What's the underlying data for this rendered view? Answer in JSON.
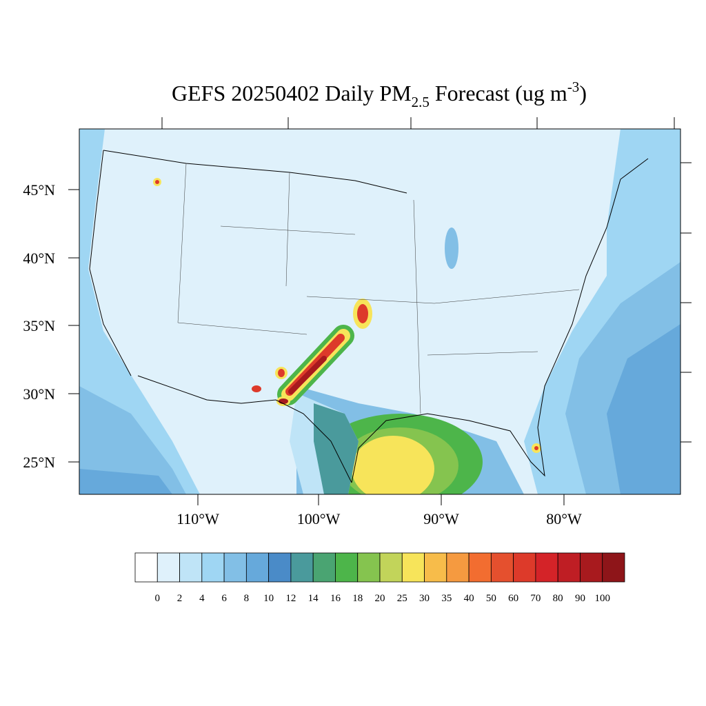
{
  "title": {
    "main": "GEFS 20250402 Daily PM",
    "sub": "2.5",
    "mid": " Forecast (ug m",
    "sup": "-3",
    "end": ")"
  },
  "lat_labels": [
    "45°N",
    "40°N",
    "35°N",
    "30°N",
    "25°N"
  ],
  "lon_labels": [
    "110°W",
    "100°W",
    "90°W",
    "80°W"
  ],
  "colorbar": {
    "levels": [
      0,
      2,
      4,
      6,
      8,
      10,
      12,
      14,
      16,
      18,
      20,
      25,
      30,
      35,
      40,
      50,
      60,
      70,
      80,
      90,
      100
    ],
    "colors": [
      "#ffffff",
      "#dff1fb",
      "#bfe4f7",
      "#9fd6f3",
      "#82bfe6",
      "#66a9db",
      "#4a8bc8",
      "#4a9a9c",
      "#4aa472",
      "#4db54a",
      "#85c44f",
      "#c2d45a",
      "#f7e45a",
      "#f7bc4a",
      "#f59a40",
      "#f26d30",
      "#e5502e",
      "#dd3a2a",
      "#d42328",
      "#bf1e24",
      "#a81a1e",
      "#8e1519"
    ]
  }
}
